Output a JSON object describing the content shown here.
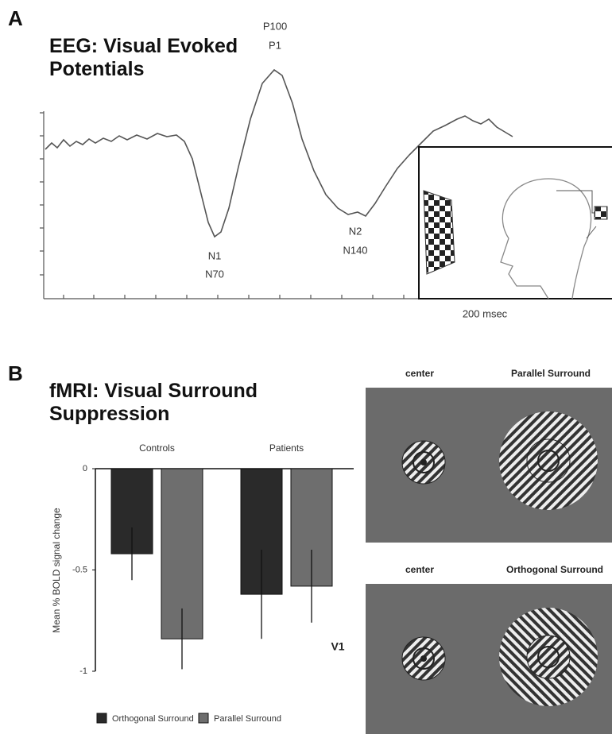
{
  "eeg": {
    "panel_label": "A",
    "title": "EEG: Visual Evoked Potentials",
    "peaks": [
      {
        "name": "P100",
        "alias": "P1"
      },
      {
        "name": "N1",
        "alias": "N70"
      },
      {
        "name": "N2",
        "alias": "N140"
      }
    ],
    "time_scale": "200 msec"
  },
  "chart_data": {
    "type": "bar",
    "panel_label": "B",
    "title": "fMRI: Visual Surround Suppression",
    "ylabel": "Mean % BOLD signal change",
    "annotation": "V1",
    "categories": [
      "Controls",
      "Patients"
    ],
    "series": [
      {
        "name": "Orthogonal Surround",
        "color": "#2a2a2a",
        "values": [
          -0.42,
          -0.62
        ],
        "errors": [
          0.13,
          0.22
        ]
      },
      {
        "name": "Parallel Surround",
        "color": "#6e6e6e",
        "values": [
          -0.84,
          -0.58
        ],
        "errors": [
          0.15,
          0.18
        ]
      }
    ],
    "ylim": [
      -1,
      0
    ],
    "yticks": [
      0,
      -0.5,
      -1
    ]
  },
  "stimuli": [
    {
      "left": "center",
      "right": "Parallel Surround"
    },
    {
      "left": "center",
      "right": "Orthogonal Surround"
    }
  ]
}
